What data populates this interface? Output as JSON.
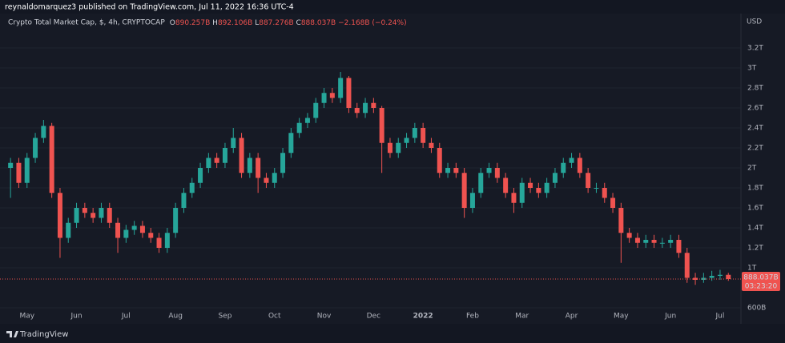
{
  "header": "reynaldomarquez3 published on TradingView.com, Jul 11, 2022 16:36 UTC-4",
  "footer": "TradingView",
  "chart_data": {
    "type": "candlestick",
    "title": "Crypto Total Market Cap, $, 4h, CRYPTOCAP",
    "ohlc_legend": [
      {
        "key": "O",
        "value": "890.257B"
      },
      {
        "key": "H",
        "value": "892.106B"
      },
      {
        "key": "L",
        "value": "887.276B"
      },
      {
        "key": "C",
        "value": "888.037B"
      }
    ],
    "change": "−2.168B (−0.24%)",
    "y_axis_label": "USD",
    "up_color": "#26a69a",
    "down_color": "#ef5350",
    "categories": [
      null,
      null,
      "May",
      null,
      null,
      null,
      null,
      null,
      "Jun",
      null,
      null,
      null,
      null,
      null,
      "Jul",
      null,
      null,
      null,
      null,
      null,
      "Aug",
      null,
      null,
      null,
      null,
      null,
      "Sep",
      null,
      null,
      null,
      null,
      null,
      "Oct",
      null,
      null,
      null,
      null,
      null,
      "Nov",
      null,
      null,
      null,
      null,
      null,
      "Dec",
      null,
      null,
      null,
      null,
      null,
      "2022",
      null,
      null,
      null,
      null,
      null,
      "Feb",
      null,
      null,
      null,
      null,
      null,
      "Mar",
      null,
      null,
      null,
      null,
      null,
      "Apr",
      null,
      null,
      null,
      null,
      null,
      "May",
      null,
      null,
      null,
      null,
      null,
      "Jun",
      null,
      null,
      null,
      null,
      null,
      "Jul",
      null
    ],
    "open": [
      2.0,
      2.05,
      1.85,
      2.1,
      2.3,
      2.42,
      1.75,
      1.3,
      1.45,
      1.6,
      1.55,
      1.5,
      1.6,
      1.45,
      1.3,
      1.38,
      1.42,
      1.35,
      1.3,
      1.2,
      1.35,
      1.6,
      1.75,
      1.85,
      2.0,
      2.1,
      2.05,
      2.2,
      2.3,
      1.95,
      2.1,
      1.9,
      1.85,
      1.95,
      2.15,
      2.35,
      2.45,
      2.5,
      2.65,
      2.75,
      2.7,
      2.9,
      2.6,
      2.55,
      2.65,
      2.6,
      2.25,
      2.15,
      2.25,
      2.3,
      2.4,
      2.25,
      2.2,
      1.95,
      2.0,
      1.95,
      1.6,
      1.75,
      1.95,
      2.0,
      1.9,
      1.75,
      1.65,
      1.85,
      1.8,
      1.75,
      1.85,
      1.95,
      2.05,
      2.1,
      1.95,
      1.8,
      1.8,
      1.7,
      1.6,
      1.35,
      1.3,
      1.25,
      1.28,
      1.25,
      1.25,
      1.28,
      1.15,
      0.9,
      0.88,
      0.9,
      0.92,
      0.93
    ],
    "high": [
      2.1,
      2.1,
      2.15,
      2.35,
      2.48,
      2.45,
      1.8,
      1.5,
      1.65,
      1.65,
      1.6,
      1.65,
      1.65,
      1.5,
      1.43,
      1.47,
      1.47,
      1.4,
      1.35,
      1.4,
      1.65,
      1.8,
      1.9,
      2.05,
      2.15,
      2.15,
      2.25,
      2.4,
      2.35,
      2.15,
      2.15,
      1.95,
      2.0,
      2.2,
      2.4,
      2.5,
      2.55,
      2.7,
      2.8,
      2.8,
      2.96,
      2.92,
      2.65,
      2.7,
      2.7,
      2.62,
      2.3,
      2.3,
      2.35,
      2.45,
      2.45,
      2.3,
      2.25,
      2.05,
      2.05,
      2.0,
      1.8,
      2.0,
      2.05,
      2.05,
      1.95,
      1.8,
      1.9,
      1.9,
      1.85,
      1.9,
      2.0,
      2.1,
      2.15,
      2.15,
      2.0,
      1.85,
      1.85,
      1.75,
      1.65,
      1.4,
      1.35,
      1.33,
      1.33,
      1.3,
      1.33,
      1.33,
      1.2,
      0.95,
      0.95,
      0.97,
      0.98,
      0.95
    ],
    "low": [
      1.7,
      1.8,
      1.8,
      2.05,
      2.25,
      1.7,
      1.1,
      1.25,
      1.4,
      1.5,
      1.45,
      1.45,
      1.4,
      1.15,
      1.25,
      1.33,
      1.3,
      1.25,
      1.15,
      1.15,
      1.3,
      1.55,
      1.7,
      1.8,
      1.95,
      2.0,
      2.0,
      2.15,
      1.9,
      1.9,
      1.75,
      1.8,
      1.8,
      1.9,
      2.1,
      2.3,
      2.4,
      2.45,
      2.6,
      2.65,
      2.65,
      2.55,
      2.5,
      2.5,
      2.55,
      1.95,
      2.1,
      2.1,
      2.2,
      2.25,
      2.2,
      2.15,
      1.9,
      1.9,
      1.9,
      1.5,
      1.55,
      1.7,
      1.9,
      1.85,
      1.7,
      1.55,
      1.6,
      1.75,
      1.7,
      1.7,
      1.8,
      1.9,
      2.0,
      1.9,
      1.75,
      1.75,
      1.65,
      1.55,
      1.05,
      1.25,
      1.2,
      1.2,
      1.2,
      1.2,
      1.2,
      1.1,
      0.85,
      0.83,
      0.85,
      0.87,
      0.88,
      0.87
    ],
    "close": [
      2.05,
      1.85,
      2.1,
      2.3,
      2.42,
      1.75,
      1.3,
      1.45,
      1.6,
      1.55,
      1.5,
      1.6,
      1.45,
      1.3,
      1.38,
      1.42,
      1.35,
      1.3,
      1.2,
      1.35,
      1.6,
      1.75,
      1.85,
      2.0,
      2.1,
      2.05,
      2.2,
      2.3,
      1.95,
      2.1,
      1.9,
      1.85,
      1.95,
      2.15,
      2.35,
      2.45,
      2.5,
      2.65,
      2.75,
      2.7,
      2.9,
      2.6,
      2.55,
      2.65,
      2.6,
      2.25,
      2.15,
      2.25,
      2.3,
      2.4,
      2.25,
      2.2,
      1.95,
      2.0,
      1.95,
      1.6,
      1.75,
      1.95,
      2.0,
      1.9,
      1.75,
      1.65,
      1.85,
      1.8,
      1.75,
      1.85,
      1.95,
      2.05,
      2.1,
      1.95,
      1.8,
      1.8,
      1.7,
      1.6,
      1.35,
      1.3,
      1.25,
      1.28,
      1.25,
      1.25,
      1.28,
      1.15,
      0.9,
      0.88,
      0.9,
      0.92,
      0.93,
      0.888
    ],
    "last_price": {
      "value": 0.888037,
      "label": "888.037B"
    },
    "countdown": "03:23:20",
    "ylim": [
      0.6,
      3.54
    ],
    "yticks": [
      {
        "value": 0.6,
        "label": "600B"
      },
      {
        "value": 1,
        "label": "1T"
      },
      {
        "value": 1.2,
        "label": "1.2T"
      },
      {
        "value": 1.4,
        "label": "1.4T"
      },
      {
        "value": 1.6,
        "label": "1.6T"
      },
      {
        "value": 1.8,
        "label": "1.8T"
      },
      {
        "value": 2,
        "label": "2T"
      },
      {
        "value": 2.2,
        "label": "2.2T"
      },
      {
        "value": 2.4,
        "label": "2.4T"
      },
      {
        "value": 2.6,
        "label": "2.6T"
      },
      {
        "value": 2.8,
        "label": "2.8T"
      },
      {
        "value": 3,
        "label": "3T"
      },
      {
        "value": 3.2,
        "label": "3.2T"
      }
    ],
    "grid": true
  }
}
